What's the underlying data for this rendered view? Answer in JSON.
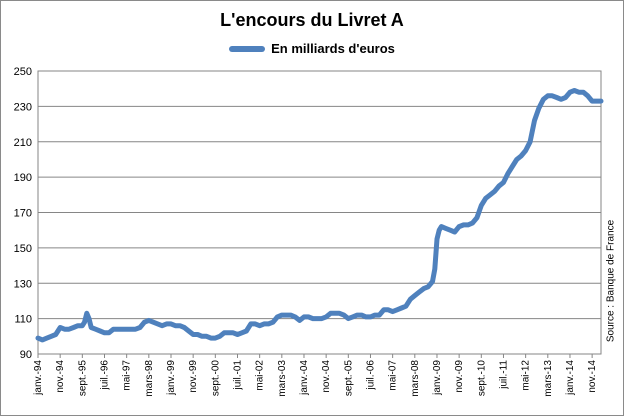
{
  "chart_data": {
    "type": "line",
    "title": "L'encours du Livret A",
    "legend": {
      "position": "top-center"
    },
    "grid": true,
    "xlabel": "",
    "ylabel": "",
    "ylim": [
      90,
      250
    ],
    "y_ticks": [
      90,
      110,
      130,
      150,
      170,
      190,
      210,
      230,
      250
    ],
    "x_range": [
      "1994-01",
      "2015-03"
    ],
    "x_tick_labels": [
      "janv.-94",
      "nov.-94",
      "sept.-95",
      "juil.-96",
      "mai-97",
      "mars-98",
      "janv.-99",
      "nov.-99",
      "sept.-00",
      "juil.-01",
      "mai-02",
      "mars-03",
      "janv.-04",
      "nov.-04",
      "sept.-05",
      "juil.-06",
      "mai-07",
      "mars-08",
      "janv.-09",
      "nov.-09",
      "sept.-10",
      "juil.-11",
      "mai-12",
      "mars-13",
      "janv.-14",
      "nov.-14"
    ],
    "x_tick_dates": [
      "1994-01",
      "1994-11",
      "1995-09",
      "1996-07",
      "1997-05",
      "1998-03",
      "1999-01",
      "1999-11",
      "2000-09",
      "2001-07",
      "2002-05",
      "2003-03",
      "2004-01",
      "2004-11",
      "2005-09",
      "2006-07",
      "2007-05",
      "2008-03",
      "2009-01",
      "2009-11",
      "2010-09",
      "2011-07",
      "2012-05",
      "2013-03",
      "2014-01",
      "2014-11"
    ],
    "series": [
      {
        "name": "En milliards d'euros",
        "color": "#4f81bd",
        "points": [
          [
            "1994-01",
            99
          ],
          [
            "1994-03",
            98
          ],
          [
            "1994-05",
            99
          ],
          [
            "1994-07",
            100
          ],
          [
            "1994-09",
            101
          ],
          [
            "1994-11",
            105
          ],
          [
            "1995-01",
            104
          ],
          [
            "1995-03",
            104
          ],
          [
            "1995-05",
            105
          ],
          [
            "1995-07",
            106
          ],
          [
            "1995-09",
            106
          ],
          [
            "1995-10",
            108
          ],
          [
            "1995-11",
            113
          ],
          [
            "1995-12",
            110
          ],
          [
            "1996-01",
            105
          ],
          [
            "1996-03",
            104
          ],
          [
            "1996-05",
            103
          ],
          [
            "1996-07",
            102
          ],
          [
            "1996-09",
            102
          ],
          [
            "1996-11",
            104
          ],
          [
            "1997-01",
            104
          ],
          [
            "1997-03",
            104
          ],
          [
            "1997-05",
            104
          ],
          [
            "1997-07",
            104
          ],
          [
            "1997-09",
            104
          ],
          [
            "1997-11",
            105
          ],
          [
            "1998-01",
            108
          ],
          [
            "1998-03",
            109
          ],
          [
            "1998-05",
            108
          ],
          [
            "1998-07",
            107
          ],
          [
            "1998-09",
            106
          ],
          [
            "1998-11",
            107
          ],
          [
            "1999-01",
            107
          ],
          [
            "1999-03",
            106
          ],
          [
            "1999-05",
            106
          ],
          [
            "1999-07",
            105
          ],
          [
            "1999-09",
            103
          ],
          [
            "1999-11",
            101
          ],
          [
            "2000-01",
            101
          ],
          [
            "2000-03",
            100
          ],
          [
            "2000-05",
            100
          ],
          [
            "2000-07",
            99
          ],
          [
            "2000-09",
            99
          ],
          [
            "2000-11",
            100
          ],
          [
            "2001-01",
            102
          ],
          [
            "2001-03",
            102
          ],
          [
            "2001-05",
            102
          ],
          [
            "2001-07",
            101
          ],
          [
            "2001-09",
            102
          ],
          [
            "2001-11",
            103
          ],
          [
            "2002-01",
            107
          ],
          [
            "2002-03",
            107
          ],
          [
            "2002-05",
            106
          ],
          [
            "2002-07",
            107
          ],
          [
            "2002-09",
            107
          ],
          [
            "2002-11",
            108
          ],
          [
            "2003-01",
            111
          ],
          [
            "2003-03",
            112
          ],
          [
            "2003-05",
            112
          ],
          [
            "2003-07",
            112
          ],
          [
            "2003-09",
            111
          ],
          [
            "2003-11",
            109
          ],
          [
            "2004-01",
            111
          ],
          [
            "2004-03",
            111
          ],
          [
            "2004-05",
            110
          ],
          [
            "2004-07",
            110
          ],
          [
            "2004-09",
            110
          ],
          [
            "2004-11",
            111
          ],
          [
            "2005-01",
            113
          ],
          [
            "2005-03",
            113
          ],
          [
            "2005-05",
            113
          ],
          [
            "2005-07",
            112
          ],
          [
            "2005-09",
            110
          ],
          [
            "2005-11",
            111
          ],
          [
            "2006-01",
            112
          ],
          [
            "2006-03",
            112
          ],
          [
            "2006-05",
            111
          ],
          [
            "2006-07",
            111
          ],
          [
            "2006-09",
            112
          ],
          [
            "2006-11",
            112
          ],
          [
            "2007-01",
            115
          ],
          [
            "2007-03",
            115
          ],
          [
            "2007-05",
            114
          ],
          [
            "2007-07",
            115
          ],
          [
            "2007-09",
            116
          ],
          [
            "2007-11",
            117
          ],
          [
            "2008-01",
            121
          ],
          [
            "2008-03",
            123
          ],
          [
            "2008-05",
            125
          ],
          [
            "2008-07",
            127
          ],
          [
            "2008-09",
            128
          ],
          [
            "2008-11",
            131
          ],
          [
            "2008-12",
            138
          ],
          [
            "2009-01",
            155
          ],
          [
            "2009-02",
            160
          ],
          [
            "2009-03",
            162
          ],
          [
            "2009-05",
            161
          ],
          [
            "2009-07",
            160
          ],
          [
            "2009-09",
            159
          ],
          [
            "2009-11",
            162
          ],
          [
            "2010-01",
            163
          ],
          [
            "2010-03",
            163
          ],
          [
            "2010-05",
            164
          ],
          [
            "2010-07",
            167
          ],
          [
            "2010-09",
            174
          ],
          [
            "2010-11",
            178
          ],
          [
            "2011-01",
            180
          ],
          [
            "2011-03",
            182
          ],
          [
            "2011-05",
            185
          ],
          [
            "2011-07",
            187
          ],
          [
            "2011-09",
            192
          ],
          [
            "2011-11",
            196
          ],
          [
            "2012-01",
            200
          ],
          [
            "2012-03",
            202
          ],
          [
            "2012-05",
            205
          ],
          [
            "2012-07",
            210
          ],
          [
            "2012-09",
            222
          ],
          [
            "2012-11",
            229
          ],
          [
            "2013-01",
            234
          ],
          [
            "2013-03",
            236
          ],
          [
            "2013-05",
            236
          ],
          [
            "2013-07",
            235
          ],
          [
            "2013-09",
            234
          ],
          [
            "2013-11",
            235
          ],
          [
            "2014-01",
            238
          ],
          [
            "2014-03",
            239
          ],
          [
            "2014-05",
            238
          ],
          [
            "2014-07",
            238
          ],
          [
            "2014-09",
            236
          ],
          [
            "2014-11",
            233
          ],
          [
            "2015-01",
            233
          ],
          [
            "2015-03",
            233
          ]
        ]
      }
    ],
    "source_note": "Source : Banque de France"
  }
}
